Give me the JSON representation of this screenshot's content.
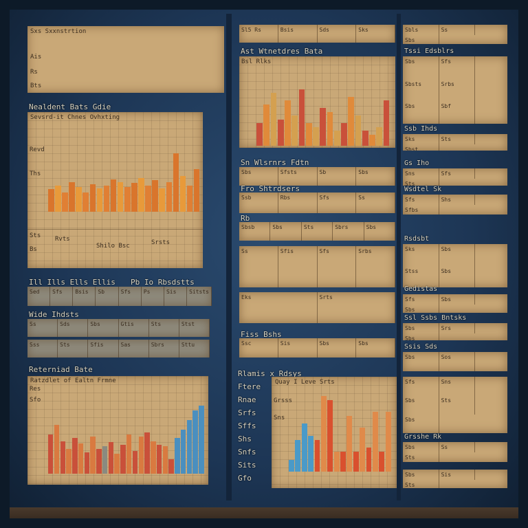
{
  "left": {
    "top_panel": {
      "title": "Sxs Sxxnstrtion",
      "rows": [
        "Ais",
        "Rs",
        "Bts"
      ]
    },
    "chart1": {
      "title": "Nealdent Bats Gdie",
      "subtitle": "Sevsrd-it Chnes Ovhxting",
      "ylabels": [
        "Revd",
        "Ths",
        "Sts",
        "Bs"
      ],
      "values": [
        35,
        40,
        30,
        45,
        38,
        30,
        42,
        36,
        40,
        50,
        45,
        38,
        44,
        52,
        40,
        48,
        36,
        45,
        90,
        55,
        40,
        65
      ],
      "colors": [
        "#d9752c",
        "#e89a3a",
        "#e07f34"
      ]
    },
    "note_rows": [
      "Rvts",
      "Shilo Bsc",
      "Srsts"
    ],
    "table1": {
      "title": "Ill Ills Ells Ellis",
      "title2": "Pb Io Rbsdstts",
      "cells": [
        "Sed",
        "Sfs",
        "Bsis",
        "Sb",
        "Sfs",
        "Ps",
        "Sis",
        "Sitsts"
      ]
    },
    "table2": {
      "title": "Wide Ihdsts",
      "rows": [
        [
          "Ss",
          "Sds",
          "Sbs",
          "Gtis",
          "Sts",
          "Stst"
        ],
        [
          "Sss",
          "Sts",
          "Sfis",
          "Sas",
          "Sbrs",
          "Sttu"
        ]
      ]
    },
    "chart3": {
      "title": "Reterniad Bate",
      "subtitle": "Ratzdlet of Ealtn Frmne",
      "ylabels": [
        "Res",
        "Sfo"
      ],
      "values": [
        55,
        68,
        45,
        35,
        50,
        42,
        30,
        52,
        35,
        38,
        44,
        28,
        40,
        55,
        32,
        52,
        58,
        45,
        40,
        38,
        20,
        50,
        62,
        75,
        88,
        95
      ],
      "colors": [
        "#c9503a",
        "#d97a40",
        "#8a8a80",
        "#4a8fbf"
      ]
    }
  },
  "middle": {
    "header": [
      "Sl5 Rs",
      "Bsis",
      "Sds",
      "Sks"
    ],
    "chart2": {
      "title": "Ast Wtnetdres Bata",
      "subtitle": "Bsl Rlks",
      "values": [
        30,
        55,
        70,
        35,
        60,
        40,
        75,
        30,
        25,
        50,
        45,
        20,
        30,
        65,
        40,
        20,
        15,
        25,
        60
      ],
      "colors": [
        "#c9503a",
        "#e08a3a",
        "#d4a050"
      ]
    },
    "label1": "Sn Wlsrnrs Fdtn",
    "rows": [
      {
        "label": "",
        "cells": [
          "Sbs",
          "Sfsts",
          "Sb",
          "Sbs"
        ]
      },
      {
        "label": "Fro Shtrdsers",
        "cells": [
          "Ssb",
          "Rbs",
          "Sfs",
          "Ss"
        ]
      },
      {
        "label": "Rb",
        "cells": [
          "Sbsb",
          "Sbs",
          "Sts",
          "Sbrs",
          "Sbs"
        ]
      },
      {
        "label": "",
        "cells": [
          "Ss",
          "Sfis",
          "Sfs",
          "Srbs"
        ]
      },
      {
        "label": "",
        "cells": [
          "Eks",
          "Srts"
        ]
      },
      {
        "label": "Fiss Bshs",
        "cells": [
          "Ssc",
          "Sis",
          "Sbs",
          "Sbs"
        ]
      }
    ],
    "side_labels": [
      "Rlamis x Rdsys",
      "Ftere",
      "Rnae",
      "Srfs",
      "Sffs",
      "Shs",
      "Snfs",
      "Sits",
      "Gfo"
    ],
    "chart4": {
      "title": "Quay I Leve Srts",
      "ylabels": [
        "Grsss",
        "Sns"
      ],
      "values": [
        15,
        40,
        60,
        45,
        40,
        95,
        90,
        25,
        25,
        70,
        25,
        55,
        30,
        75,
        25,
        75
      ],
      "colors": [
        "#4a9ac8",
        "#d9502e",
        "#e08a4a"
      ]
    }
  },
  "right": {
    "strips": [
      {
        "label": "",
        "cells": [
          "Sbls",
          "Ss",
          "Sbs"
        ]
      },
      {
        "label": "Tssi Edsblrs",
        "cells": [
          "Sbs",
          "Sfs",
          "Sbsts",
          "Srbs",
          "Sbs",
          "Sbf"
        ]
      },
      {
        "label": "Ssb Ihds",
        "cells": [
          "Sks",
          "Sts",
          "Sbst"
        ]
      },
      {
        "label": "Gs Iho",
        "cells": [
          "Sns",
          "Sfs",
          "Sts"
        ]
      },
      {
        "label": "Wsdtel Sk",
        "cells": [
          "Sfs",
          "Shs",
          "Sfbs"
        ]
      },
      {
        "label": "Rsdsbt",
        "cells": [
          "Sks",
          "Sbs",
          "Stss",
          "Sbs"
        ]
      },
      {
        "label": "Gedistas",
        "cells": [
          "Sfs",
          "Sbs",
          "Sbs"
        ]
      },
      {
        "label": "Ssl Ssbs Bntsks",
        "cells": [
          "Sbs",
          "Srs",
          "Sbs"
        ]
      },
      {
        "label": "Ssis Sds",
        "cells": [
          "Sbs",
          "Sos"
        ]
      },
      {
        "label": "",
        "cells": [
          "Sfs",
          "Sns",
          "Sbs",
          "Sts",
          "Sbs"
        ]
      },
      {
        "label": "Grsshe Rk",
        "cells": [
          "Sbs",
          "Ss",
          "Sts"
        ]
      },
      {
        "label": "",
        "cells": [
          "Sbs",
          "Sis",
          "Sts"
        ]
      }
    ]
  }
}
